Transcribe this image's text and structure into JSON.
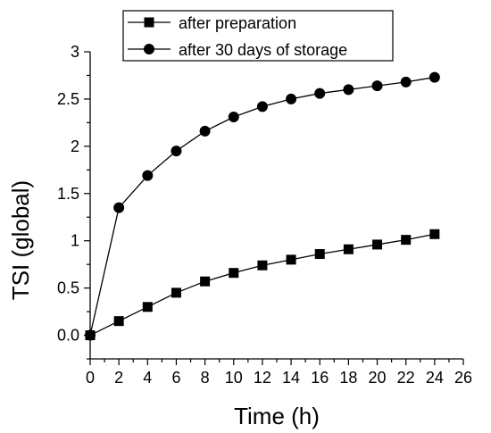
{
  "chart_data": {
    "type": "line",
    "xlabel": "Time (h)",
    "ylabel": "TSI (global)",
    "xlim": [
      0,
      26
    ],
    "ylim": [
      -0.25,
      3
    ],
    "x_ticks": [
      "0",
      "2",
      "4",
      "6",
      "8",
      "10",
      "12",
      "14",
      "16",
      "18",
      "20",
      "22",
      "24",
      "26"
    ],
    "y_ticks": [
      "0.0",
      "0.5",
      "1",
      "1.5",
      "2",
      "2.5",
      "3"
    ],
    "x": [
      0,
      2,
      4,
      6,
      8,
      10,
      12,
      14,
      16,
      18,
      20,
      22,
      24
    ],
    "series": [
      {
        "name": "after preparation",
        "marker": "square",
        "values": [
          0.0,
          0.15,
          0.3,
          0.45,
          0.57,
          0.66,
          0.74,
          0.8,
          0.86,
          0.91,
          0.96,
          1.01,
          1.07
        ]
      },
      {
        "name": "after 30 days of storage",
        "marker": "circle",
        "values": [
          0.0,
          1.35,
          1.69,
          1.95,
          2.16,
          2.31,
          2.42,
          2.5,
          2.56,
          2.6,
          2.64,
          2.68,
          2.73
        ]
      }
    ],
    "legend_position": "top",
    "grid": false,
    "colors": {
      "line": "#000000",
      "marker": "#000000",
      "background": "#ffffff"
    }
  }
}
